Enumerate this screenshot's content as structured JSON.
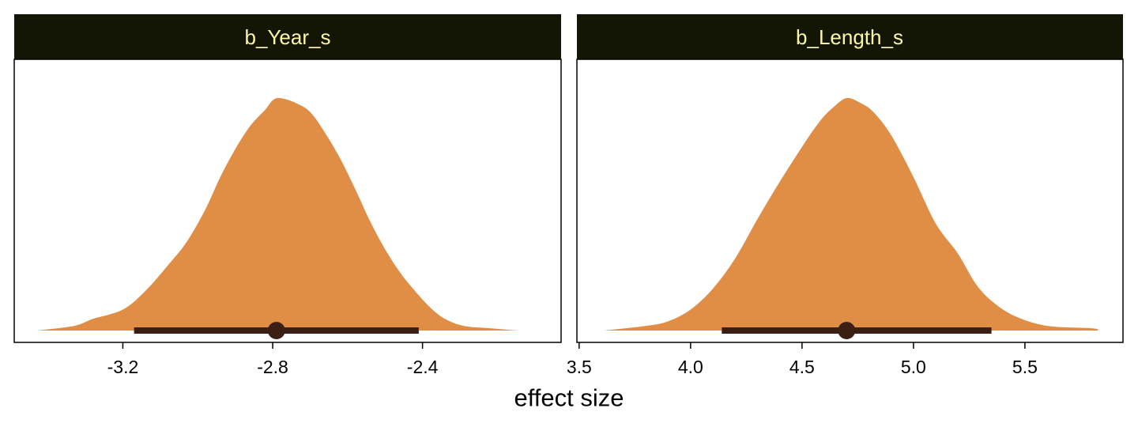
{
  "chart_data": {
    "type": "area",
    "xlabel": "effect size",
    "colors": {
      "density_fill": "#e08e45",
      "interval": "#3b1f15",
      "strip_background": "#141605",
      "strip_text": "#fff7a8"
    },
    "panels": [
      {
        "title": "b_Year_s",
        "xlim": [
          -3.49,
          -2.03
        ],
        "ticks": [
          -3.2,
          -2.8,
          -2.4
        ],
        "tick_labels": [
          "-3.2",
          "-2.8",
          "-2.4"
        ],
        "density_x": [
          -3.43,
          -3.33,
          -3.28,
          -3.2,
          -3.14,
          -3.08,
          -3.03,
          -2.98,
          -2.94,
          -2.9,
          -2.86,
          -2.82,
          -2.8,
          -2.78,
          -2.74,
          -2.7,
          -2.66,
          -2.62,
          -2.58,
          -2.54,
          -2.5,
          -2.46,
          -2.42,
          -2.38,
          -2.34,
          -2.29,
          -2.22,
          -2.14,
          -2.06
        ],
        "density_y": [
          0.0,
          0.02,
          0.05,
          0.09,
          0.17,
          0.28,
          0.38,
          0.52,
          0.66,
          0.78,
          0.88,
          0.95,
          0.99,
          1.0,
          0.98,
          0.94,
          0.85,
          0.74,
          0.61,
          0.47,
          0.35,
          0.25,
          0.17,
          0.1,
          0.05,
          0.02,
          0.01,
          0.0,
          0.0
        ],
        "point": -2.79,
        "interval": [
          -3.17,
          -2.41
        ]
      },
      {
        "title": "b_Length_s",
        "xlim": [
          3.49,
          5.94
        ],
        "ticks": [
          3.5,
          4.0,
          4.5,
          5.0,
          5.5
        ],
        "tick_labels": [
          "3.5",
          "4.0",
          "4.5",
          "5.0",
          "5.5"
        ],
        "density_x": [
          3.61,
          3.8,
          3.9,
          4.0,
          4.1,
          4.2,
          4.3,
          4.4,
          4.5,
          4.58,
          4.64,
          4.7,
          4.76,
          4.82,
          4.9,
          5.0,
          5.1,
          5.2,
          5.28,
          5.36,
          5.46,
          5.6,
          5.8,
          5.83
        ],
        "density_y": [
          0.0,
          0.02,
          0.04,
          0.09,
          0.18,
          0.31,
          0.48,
          0.64,
          0.79,
          0.9,
          0.96,
          1.0,
          0.98,
          0.94,
          0.84,
          0.66,
          0.46,
          0.33,
          0.2,
          0.12,
          0.06,
          0.02,
          0.01,
          0.0
        ],
        "point": 4.7,
        "interval": [
          4.14,
          5.35
        ]
      }
    ]
  }
}
